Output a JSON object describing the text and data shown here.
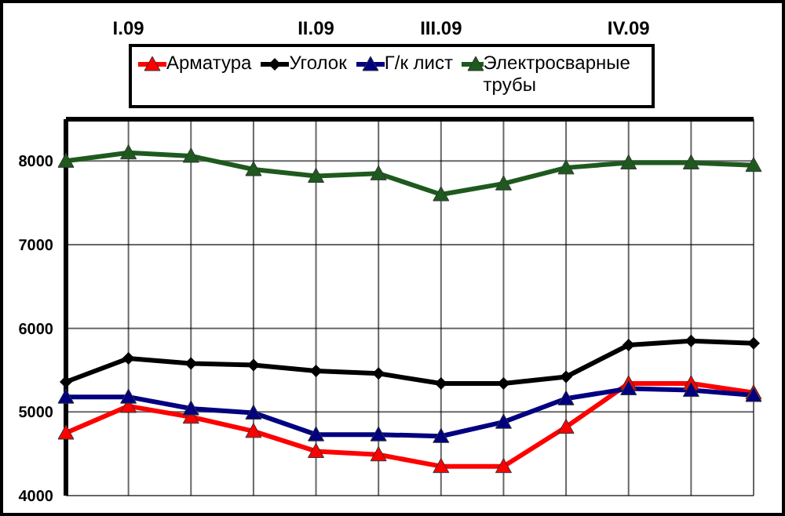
{
  "chart_data": {
    "type": "line",
    "categories": [
      null,
      "I.09",
      null,
      null,
      "II.09",
      null,
      "III.09",
      null,
      null,
      "IV.09",
      null,
      null
    ],
    "series": [
      {
        "name": "Арматура",
        "color": "#ff0000",
        "marker": "triangle",
        "values": [
          4750,
          5070,
          4940,
          4770,
          4530,
          4490,
          4350,
          4350,
          4820,
          5340,
          5340,
          5230
        ]
      },
      {
        "name": "Уголок",
        "color": "#000000",
        "marker": "diamond",
        "values": [
          5360,
          5640,
          5580,
          5560,
          5490,
          5460,
          5340,
          5340,
          5420,
          5800,
          5850,
          5820
        ]
      },
      {
        "name": "Г/к лист",
        "color": "#000080",
        "marker": "triangle",
        "values": [
          5180,
          5180,
          5040,
          4990,
          4730,
          4730,
          4710,
          4880,
          5160,
          5280,
          5260,
          5200
        ]
      },
      {
        "name": "Электросварные трубы",
        "color": "#1e5a1e",
        "marker": "triangle",
        "values": [
          8000,
          8100,
          8060,
          7900,
          7820,
          7850,
          7600,
          7730,
          7920,
          7980,
          7980,
          7950
        ]
      }
    ],
    "ylim": [
      4000,
      8500
    ],
    "yticks": [
      4000,
      5000,
      6000,
      7000,
      8000
    ],
    "grid": true,
    "legend": "top"
  }
}
